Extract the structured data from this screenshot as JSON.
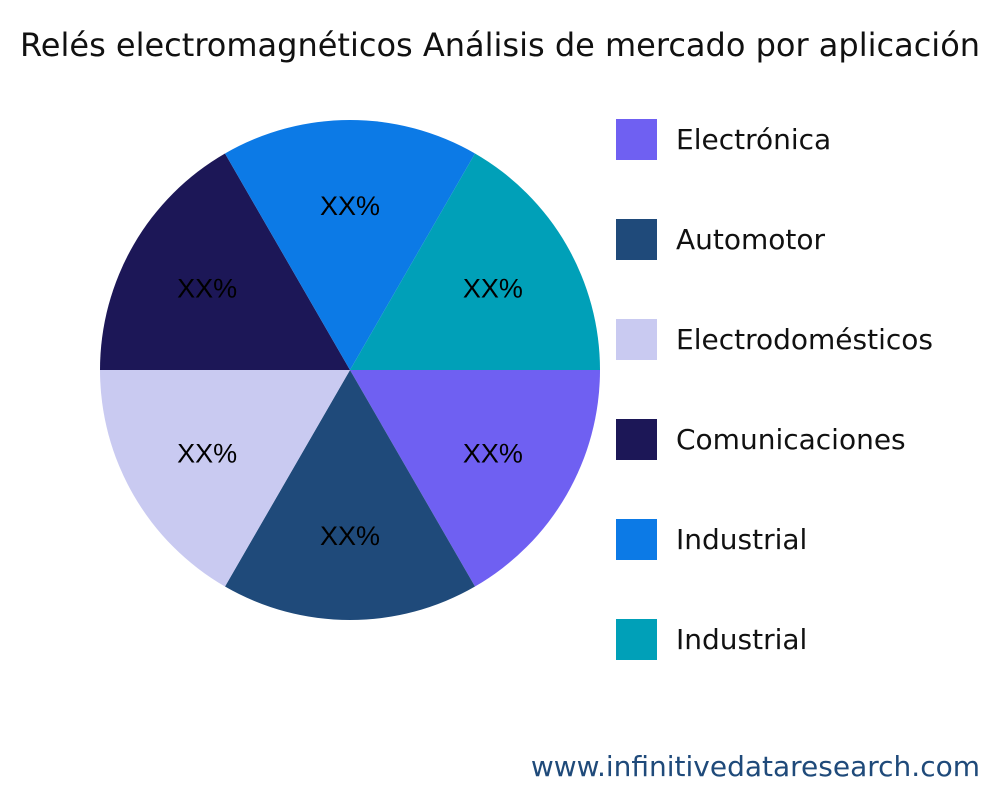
{
  "chart_data": {
    "type": "pie",
    "title": "Relés electromagnéticos Análisis de mercado por aplicación",
    "categories": [
      "Electrónica",
      "Automotor",
      "Electrodomésticos",
      "Comunicaciones",
      "Industrial",
      "Industrial"
    ],
    "values": [
      1,
      1,
      1,
      1,
      1,
      1
    ],
    "data_labels": [
      "XX%",
      "XX%",
      "XX%",
      "XX%",
      "XX%",
      "XX%"
    ],
    "colors": [
      "#6f60f2",
      "#1f4a7a",
      "#c9caf1",
      "#1c1757",
      "#0c7ae6",
      "#00a0b8"
    ],
    "legend_placement": "right"
  },
  "footer": "www.infinitivedataresearch.com"
}
